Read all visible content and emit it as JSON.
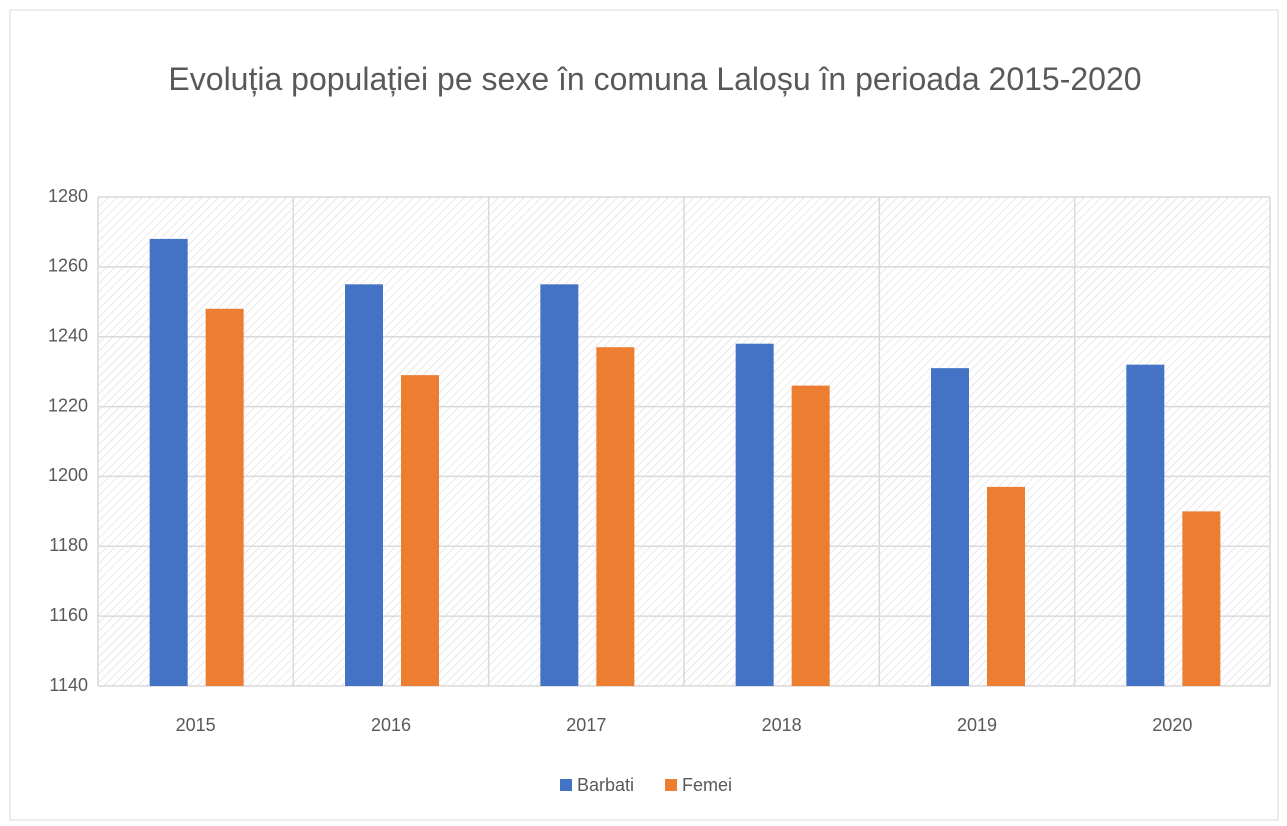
{
  "chart_data": {
    "type": "bar",
    "title": "Evoluția populației pe sexe în comuna Laloșu în perioada 2015-2020",
    "categories": [
      "2015",
      "2016",
      "2017",
      "2018",
      "2019",
      "2020"
    ],
    "series": [
      {
        "name": "Barbati",
        "color": "#4472c4",
        "values": [
          1268,
          1255,
          1255,
          1238,
          1231,
          1232
        ]
      },
      {
        "name": "Femei",
        "color": "#ed7d31",
        "values": [
          1248,
          1229,
          1237,
          1226,
          1197,
          1190
        ]
      }
    ],
    "ylim": [
      1140,
      1280
    ],
    "yticks": [
      1140,
      1160,
      1180,
      1200,
      1220,
      1240,
      1260,
      1280
    ],
    "grid": true,
    "legend": "bottom"
  }
}
